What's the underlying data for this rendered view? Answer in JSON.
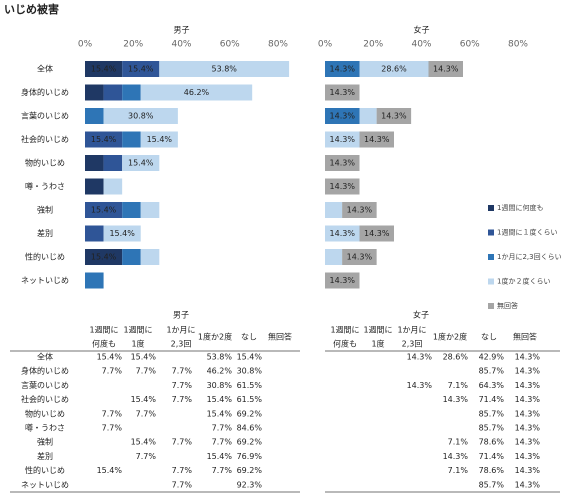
{
  "title": "いじめ被害",
  "chart_data": [
    {
      "type": "bar",
      "orientation": "horizontal",
      "stacked": true,
      "title": "男子",
      "categories": [
        "全体",
        "身体的いじめ",
        "言葉のいじめ",
        "社会的いじめ",
        "物的いじめ",
        "噂・うわさ",
        "強制",
        "差別",
        "性的いじめ",
        "ネットいじめ"
      ],
      "xlim": [
        0,
        80
      ],
      "xticks": [
        {
          "value": 0,
          "label": "0%"
        },
        {
          "value": 20,
          "label": "20%"
        },
        {
          "value": 40,
          "label": "40%"
        },
        {
          "value": 60,
          "label": "60%"
        },
        {
          "value": 80,
          "label": "80%"
        }
      ],
      "legend": "right",
      "series": [
        {
          "name": "1週間に何度も",
          "color": "#1f3864",
          "values": [
            15.4,
            7.7,
            null,
            null,
            7.7,
            7.7,
            null,
            null,
            15.4,
            null
          ],
          "value_labels": [
            "15.4%",
            null,
            null,
            null,
            null,
            null,
            null,
            null,
            "15.4%",
            null
          ]
        },
        {
          "name": "1週間に１度くらい",
          "color": "#2f5597",
          "values": [
            15.4,
            7.7,
            null,
            15.4,
            7.7,
            null,
            15.4,
            7.7,
            null,
            null
          ],
          "value_labels": [
            "15.4%",
            null,
            null,
            "15.4%",
            null,
            null,
            "15.4%",
            null,
            null,
            null
          ]
        },
        {
          "name": "1か月に2,3回くらい",
          "color": "#2e75b6",
          "values": [
            null,
            7.7,
            7.7,
            7.7,
            null,
            null,
            7.7,
            null,
            7.7,
            7.7
          ],
          "value_labels": [
            null,
            null,
            null,
            null,
            null,
            null,
            null,
            null,
            null,
            null
          ]
        },
        {
          "name": "1度か２度くらい",
          "color": "#bdd7ee",
          "values": [
            53.8,
            46.2,
            30.8,
            15.4,
            15.4,
            7.7,
            7.7,
            15.4,
            7.7,
            null
          ],
          "value_labels": [
            "53.8%",
            "46.2%",
            "30.8%",
            "15.4%",
            "15.4%",
            null,
            null,
            "15.4%",
            null,
            null
          ]
        },
        {
          "name": "無回答",
          "color": "#a5a5a5",
          "values": [
            null,
            null,
            null,
            null,
            null,
            null,
            null,
            null,
            null,
            null
          ],
          "value_labels": [
            null,
            null,
            null,
            null,
            null,
            null,
            null,
            null,
            null,
            null
          ]
        }
      ]
    },
    {
      "type": "bar",
      "orientation": "horizontal",
      "stacked": true,
      "title": "女子",
      "xlim": [
        0,
        80
      ],
      "xticks": [
        {
          "value": 0,
          "label": "0%"
        },
        {
          "value": 20,
          "label": "20%"
        },
        {
          "value": 40,
          "label": "40%"
        },
        {
          "value": 60,
          "label": "60%"
        },
        {
          "value": 80,
          "label": "80%"
        }
      ],
      "series": [
        {
          "color": "#1f3864",
          "values": [
            null,
            null,
            null,
            null,
            null,
            null,
            null,
            null,
            null,
            null
          ],
          "value_labels": [
            null,
            null,
            null,
            null,
            null,
            null,
            null,
            null,
            null,
            null
          ]
        },
        {
          "color": "#2f5597",
          "values": [
            null,
            null,
            null,
            null,
            null,
            null,
            null,
            null,
            null,
            null
          ],
          "value_labels": [
            null,
            null,
            null,
            null,
            null,
            null,
            null,
            null,
            null,
            null
          ]
        },
        {
          "color": "#2e75b6",
          "values": [
            14.3,
            null,
            14.3,
            null,
            null,
            null,
            null,
            null,
            null,
            null
          ],
          "value_labels": [
            "14.3%",
            null,
            "14.3%",
            null,
            null,
            null,
            null,
            null,
            null,
            null
          ]
        },
        {
          "color": "#bdd7ee",
          "values": [
            28.6,
            null,
            7.1,
            14.3,
            null,
            null,
            7.1,
            14.3,
            7.1,
            null
          ],
          "value_labels": [
            "28.6%",
            null,
            null,
            "14.3%",
            null,
            null,
            null,
            "14.3%",
            null,
            null
          ]
        },
        {
          "color": "#a5a5a5",
          "values": [
            14.3,
            14.3,
            14.3,
            14.3,
            14.3,
            14.3,
            14.3,
            14.3,
            14.3,
            14.3
          ],
          "value_labels": [
            "14.3%",
            "14.3%",
            "14.3%",
            "14.3%",
            "14.3%",
            "14.3%",
            "14.3%",
            "14.3%",
            "14.3%",
            "14.3%"
          ]
        }
      ]
    }
  ],
  "tables": [
    {
      "title": "男子",
      "columns": [
        [
          "1週間に",
          "何度も"
        ],
        [
          "1週間に",
          "1度"
        ],
        [
          "1か月に",
          "2,3回"
        ],
        [
          "1度か2度"
        ],
        [
          "なし"
        ],
        [
          "無回答"
        ]
      ],
      "rows": [
        {
          "label": "全体",
          "cells": [
            "15.4%",
            "15.4%",
            null,
            "53.8%",
            "15.4%",
            null
          ]
        },
        {
          "label": "身体的いじめ",
          "cells": [
            "7.7%",
            "7.7%",
            "7.7%",
            "46.2%",
            "30.8%",
            null
          ]
        },
        {
          "label": "言葉のいじめ",
          "cells": [
            null,
            null,
            "7.7%",
            "30.8%",
            "61.5%",
            null
          ]
        },
        {
          "label": "社会的いじめ",
          "cells": [
            null,
            "15.4%",
            "7.7%",
            "15.4%",
            "61.5%",
            null
          ]
        },
        {
          "label": "物的いじめ",
          "cells": [
            "7.7%",
            "7.7%",
            null,
            "15.4%",
            "69.2%",
            null
          ]
        },
        {
          "label": "噂・うわさ",
          "cells": [
            "7.7%",
            null,
            null,
            "7.7%",
            "84.6%",
            null
          ]
        },
        {
          "label": "強制",
          "cells": [
            null,
            "15.4%",
            "7.7%",
            "7.7%",
            "69.2%",
            null
          ]
        },
        {
          "label": "差別",
          "cells": [
            null,
            "7.7%",
            null,
            "15.4%",
            "76.9%",
            null
          ]
        },
        {
          "label": "性的いじめ",
          "cells": [
            "15.4%",
            null,
            "7.7%",
            "7.7%",
            "69.2%",
            null
          ]
        },
        {
          "label": "ネットいじめ",
          "cells": [
            null,
            null,
            "7.7%",
            null,
            "92.3%",
            null
          ]
        }
      ]
    },
    {
      "title": "女子",
      "columns": [
        [
          "1週間に",
          "何度も"
        ],
        [
          "1週間に",
          "1度"
        ],
        [
          "1か月に",
          "2,3回"
        ],
        [
          "1度か2度"
        ],
        [
          "なし"
        ],
        [
          "無回答"
        ]
      ],
      "rows": [
        {
          "cells": [
            null,
            null,
            "14.3%",
            "28.6%",
            "42.9%",
            "14.3%"
          ]
        },
        {
          "cells": [
            null,
            null,
            null,
            null,
            "85.7%",
            "14.3%"
          ]
        },
        {
          "cells": [
            null,
            null,
            "14.3%",
            "7.1%",
            "64.3%",
            "14.3%"
          ]
        },
        {
          "cells": [
            null,
            null,
            null,
            "14.3%",
            "71.4%",
            "14.3%"
          ]
        },
        {
          "cells": [
            null,
            null,
            null,
            null,
            "85.7%",
            "14.3%"
          ]
        },
        {
          "cells": [
            null,
            null,
            null,
            null,
            "85.7%",
            "14.3%"
          ]
        },
        {
          "cells": [
            null,
            null,
            null,
            "7.1%",
            "78.6%",
            "14.3%"
          ]
        },
        {
          "cells": [
            null,
            null,
            null,
            "14.3%",
            "71.4%",
            "14.3%"
          ]
        },
        {
          "cells": [
            null,
            null,
            null,
            "7.1%",
            "78.6%",
            "14.3%"
          ]
        },
        {
          "cells": [
            null,
            null,
            null,
            null,
            "85.7%",
            "14.3%"
          ]
        }
      ]
    }
  ]
}
